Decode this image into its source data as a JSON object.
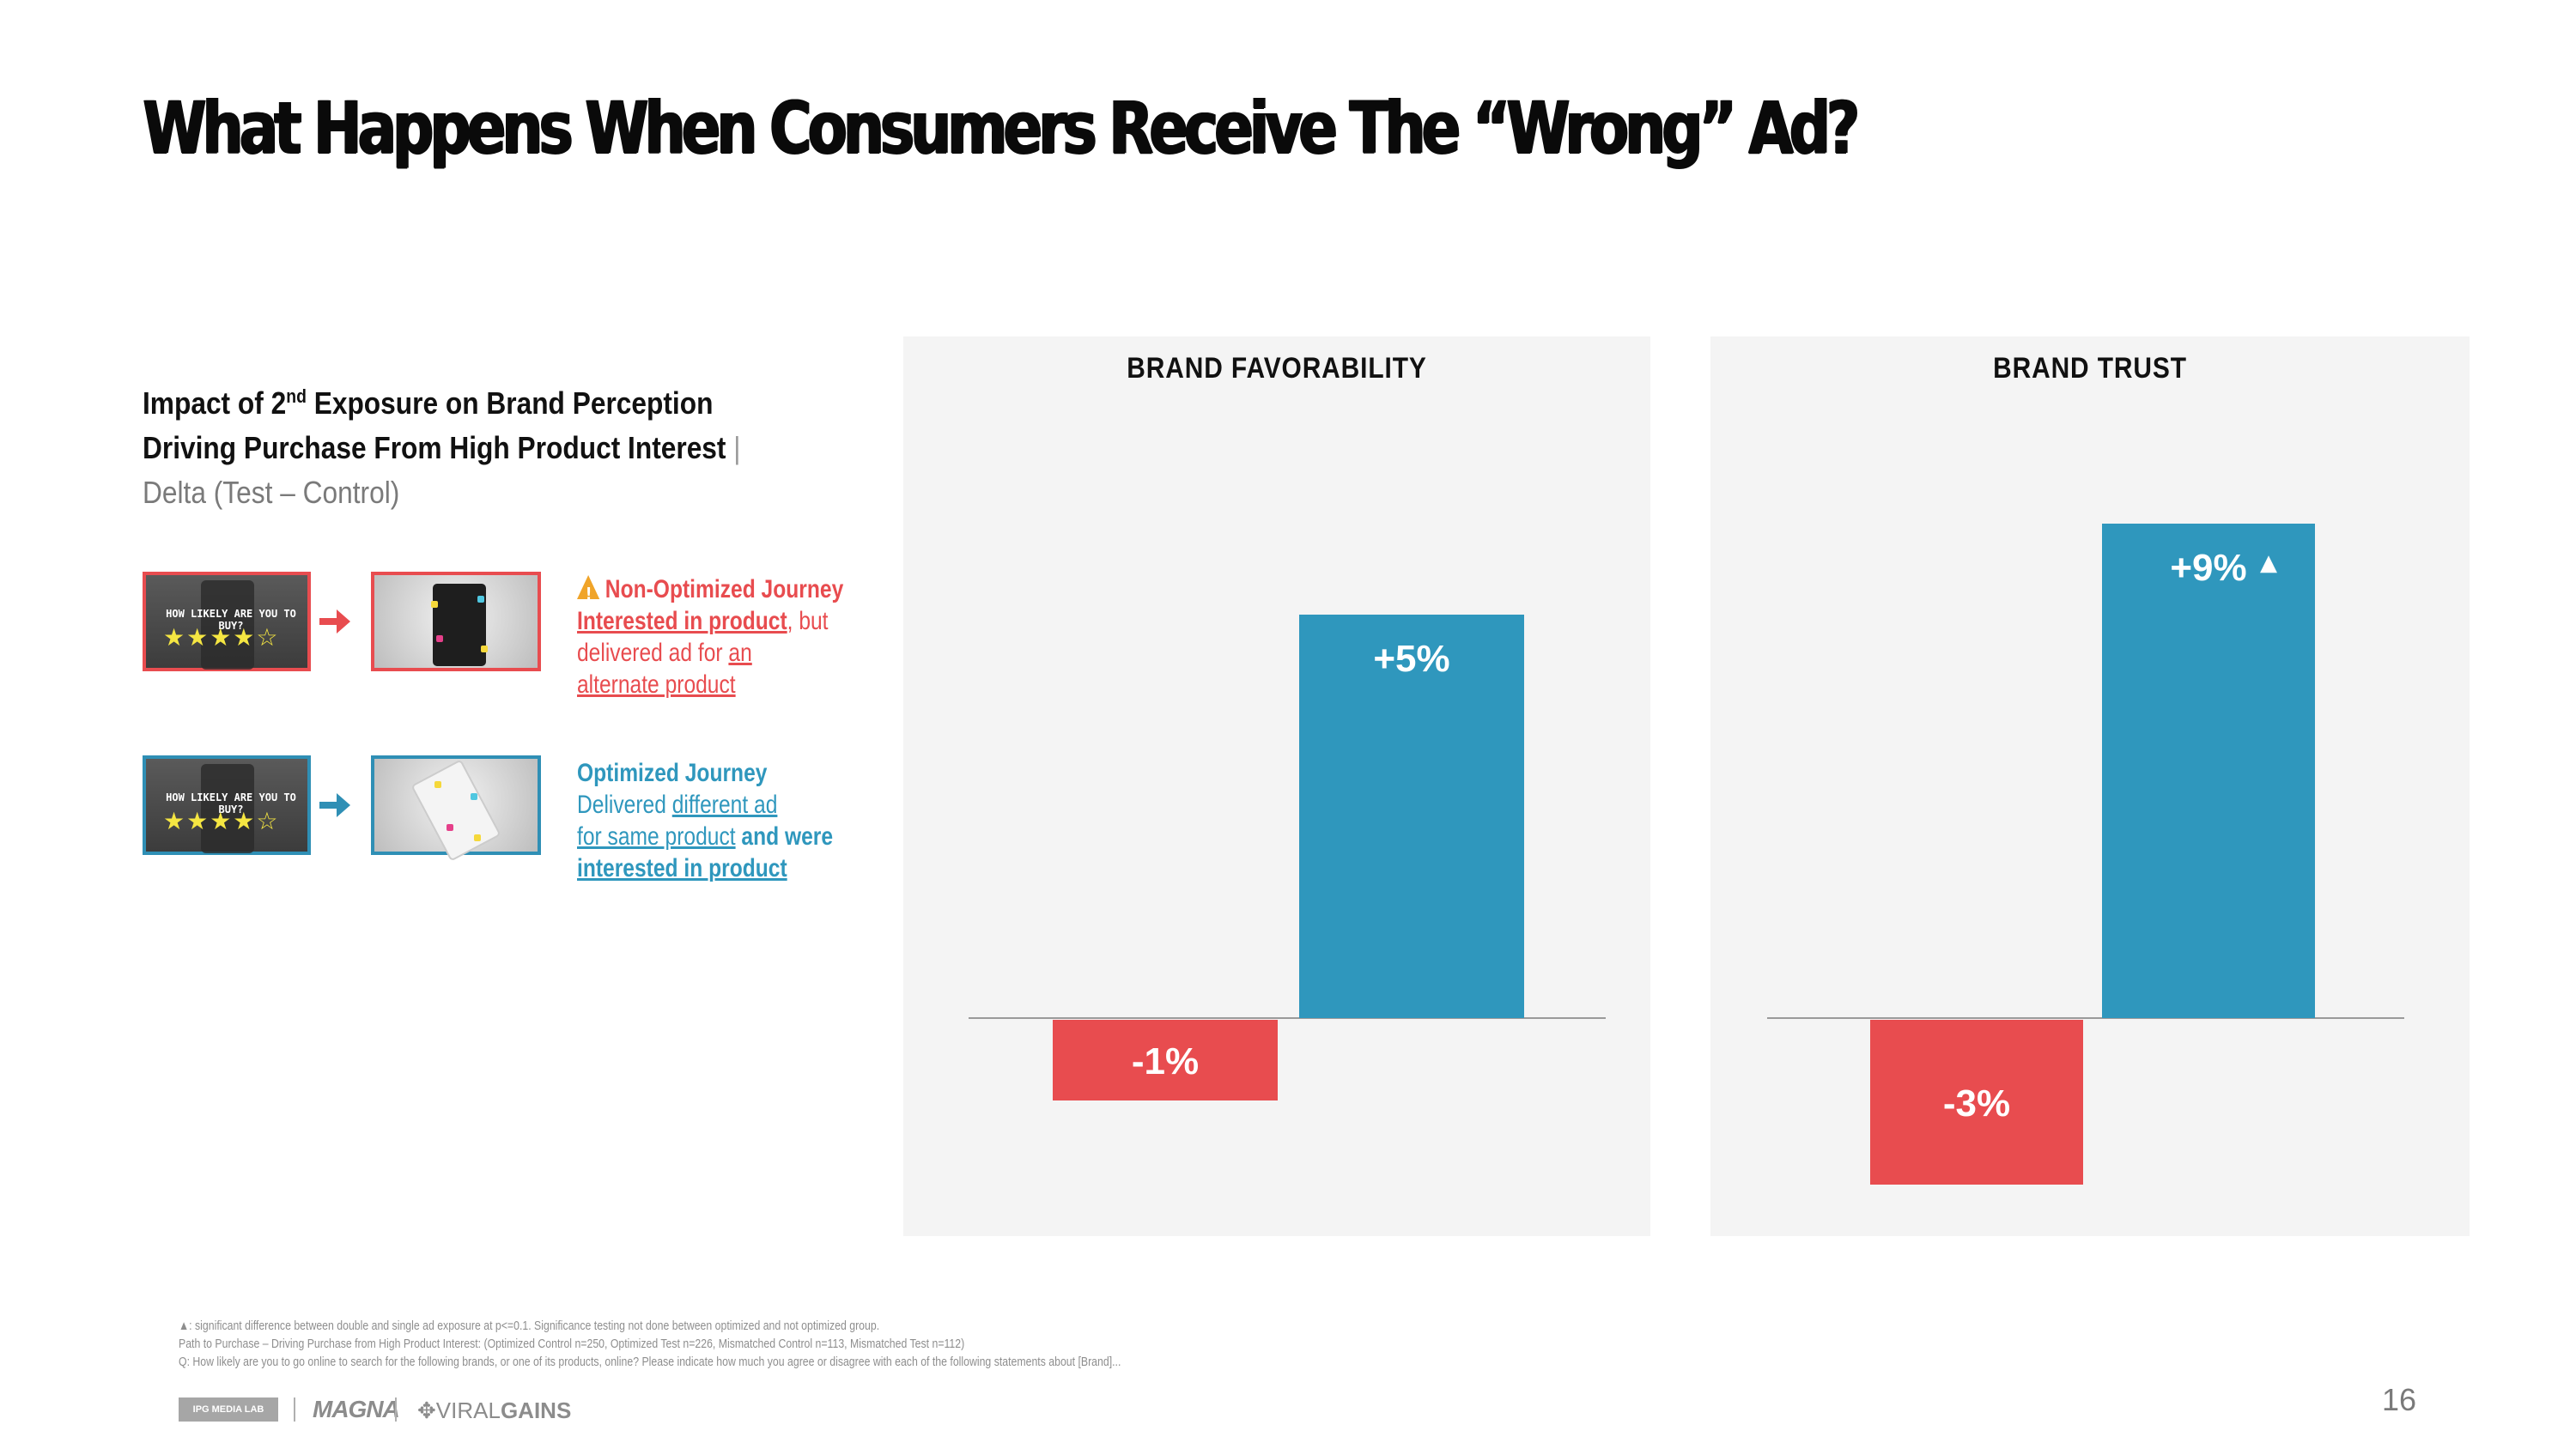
{
  "slide": {
    "title": "What Happens When Consumers Receive The “Wrong” Ad?",
    "subtitle": {
      "line1_prefix": "Impact of 2",
      "line1_sup": "nd",
      "line1_suffix": " Exposure on Brand Perception",
      "line2": "Driving Purchase From High Product Interest",
      "separator": "|",
      "line3": "Delta (Test – Control)"
    },
    "page_number": "16"
  },
  "legend": {
    "question_text": "HOW LIKELY ARE YOU TO BUY?",
    "stars": "★★★★☆",
    "non_optimized": {
      "heading": "Non-Optimized Journey",
      "part1": "Interested in product",
      "part2": ", but",
      "part3": "delivered ad for ",
      "part4": "an",
      "part5": "alternate product"
    },
    "optimized": {
      "heading": "Optimized Journey",
      "part1": "Delivered ",
      "part2": "different ad",
      "part3": "for same product",
      "part4": " and were",
      "part5": "interested in product"
    }
  },
  "colors": {
    "non_optimized": "#e84c4f",
    "optimized": "#2f97bd",
    "significance": "#ffffff",
    "panel_bg": "#f4f4f4"
  },
  "chart_data": [
    {
      "type": "bar",
      "title": "BRAND FAVORABILITY",
      "categories": [
        "Non-Optimized Journey",
        "Optimized Journey"
      ],
      "values": [
        -1,
        5
      ],
      "labels": [
        "-1%",
        "+5%"
      ],
      "significant": [
        false,
        false
      ],
      "ylim": [
        -10,
        10
      ],
      "grid": false,
      "xlabel": "",
      "ylabel": ""
    },
    {
      "type": "bar",
      "title": "BRAND TRUST",
      "categories": [
        "Non-Optimized Journey",
        "Optimized Journey"
      ],
      "values": [
        -3,
        9
      ],
      "labels": [
        "-3%",
        "+9%"
      ],
      "significant": [
        false,
        true
      ],
      "ylim": [
        -10,
        10
      ],
      "grid": false,
      "xlabel": "",
      "ylabel": ""
    }
  ],
  "footnotes": {
    "significance_marker": "▲",
    "line1": ": significant difference between double and single ad exposure at p<=0.1. Significance testing not done between optimized and not optimized group.",
    "line2": "Path to Purchase – Driving Purchase from High Product Interest: (Optimized Control n=250, Optimized Test n=226, Mismatched Control n=113, Mismatched Test n=112)",
    "line3": "Q: How likely are you to go online to search for the following brands, or one of its products, online? Please indicate how much you agree or disagree with each of the following statements about [Brand]..."
  },
  "logos": {
    "ipg": "IPG MEDIA LAB",
    "magna": "MAGNA",
    "viralgains_prefix": "VIRAL",
    "viralgains_suffix": "GAINS"
  }
}
